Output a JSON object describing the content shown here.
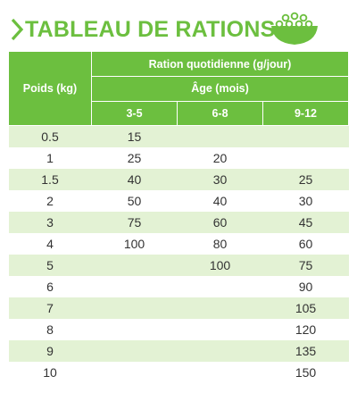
{
  "header": {
    "title": "TABLEAU DE RATIONS",
    "accent_color": "#6cbf3f",
    "icon": "bowl-of-kibble-icon"
  },
  "table": {
    "poids_label": "Poids (kg)",
    "ration_label": "Ration quotidienne (g/jour)",
    "age_label": "Âge (mois)",
    "age_ranges": [
      "3-5",
      "6-8",
      "9-12"
    ],
    "rows": [
      {
        "poids": "0.5",
        "c1": "15",
        "c2": "",
        "c3": ""
      },
      {
        "poids": "1",
        "c1": "25",
        "c2": "20",
        "c3": ""
      },
      {
        "poids": "1.5",
        "c1": "40",
        "c2": "30",
        "c3": "25"
      },
      {
        "poids": "2",
        "c1": "50",
        "c2": "40",
        "c3": "30"
      },
      {
        "poids": "3",
        "c1": "75",
        "c2": "60",
        "c3": "45"
      },
      {
        "poids": "4",
        "c1": "100",
        "c2": "80",
        "c3": "60"
      },
      {
        "poids": "5",
        "c1": "",
        "c2": "100",
        "c3": "75"
      },
      {
        "poids": "6",
        "c1": "",
        "c2": "",
        "c3": "90"
      },
      {
        "poids": "7",
        "c1": "",
        "c2": "",
        "c3": "105"
      },
      {
        "poids": "8",
        "c1": "",
        "c2": "",
        "c3": "120"
      },
      {
        "poids": "9",
        "c1": "",
        "c2": "",
        "c3": "135"
      },
      {
        "poids": "10",
        "c1": "",
        "c2": "",
        "c3": "150"
      }
    ],
    "header_color": "#6cbf3f",
    "stripe_color": "#e3f2d4"
  }
}
